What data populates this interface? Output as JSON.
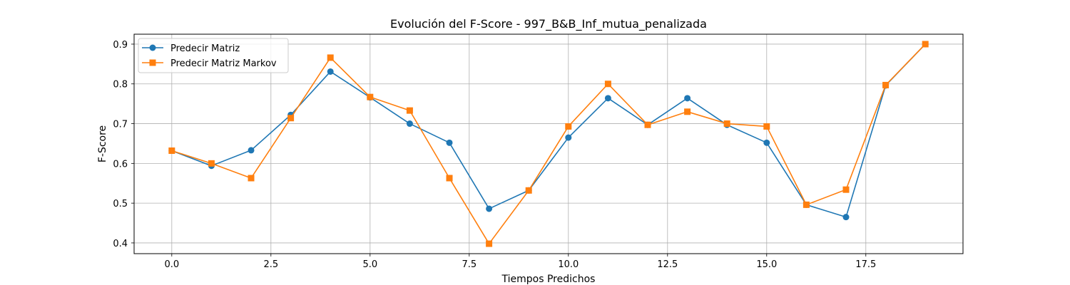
{
  "chart_data": {
    "type": "line",
    "title": "Evolución del F-Score - 997_B&B_Inf_mutua_penalizada",
    "xlabel": "Tiempos Predichos",
    "ylabel": "F-Score",
    "xlim": [
      -0.95,
      19.95
    ],
    "ylim": [
      0.373,
      0.925
    ],
    "xticks": [
      0.0,
      2.5,
      5.0,
      7.5,
      10.0,
      12.5,
      15.0,
      17.5
    ],
    "xtick_labels": [
      "0.0",
      "2.5",
      "5.0",
      "7.5",
      "10.0",
      "12.5",
      "15.0",
      "17.5"
    ],
    "yticks": [
      0.4,
      0.5,
      0.6,
      0.7,
      0.8,
      0.9
    ],
    "ytick_labels": [
      "0.4",
      "0.5",
      "0.6",
      "0.7",
      "0.8",
      "0.9"
    ],
    "grid": true,
    "legend_position": "top-left",
    "x": [
      0,
      1,
      2,
      3,
      4,
      5,
      6,
      7,
      8,
      9,
      10,
      11,
      12,
      13,
      14,
      15,
      16,
      17,
      18,
      19
    ],
    "series": [
      {
        "name": "Predecir Matriz",
        "color": "#1f77b4",
        "marker": "circle",
        "values": [
          0.632,
          0.594,
          0.633,
          0.722,
          0.831,
          0.766,
          0.7,
          0.652,
          0.486,
          0.532,
          0.665,
          0.764,
          0.697,
          0.764,
          0.697,
          0.652,
          0.496,
          0.465,
          0.796,
          0.9
        ]
      },
      {
        "name": "Predecir Matriz Markov",
        "color": "#ff7f0e",
        "marker": "square",
        "values": [
          0.632,
          0.6,
          0.563,
          0.714,
          0.866,
          0.767,
          0.733,
          0.563,
          0.398,
          0.532,
          0.693,
          0.8,
          0.697,
          0.73,
          0.7,
          0.693,
          0.496,
          0.534,
          0.797,
          0.9
        ]
      }
    ]
  }
}
